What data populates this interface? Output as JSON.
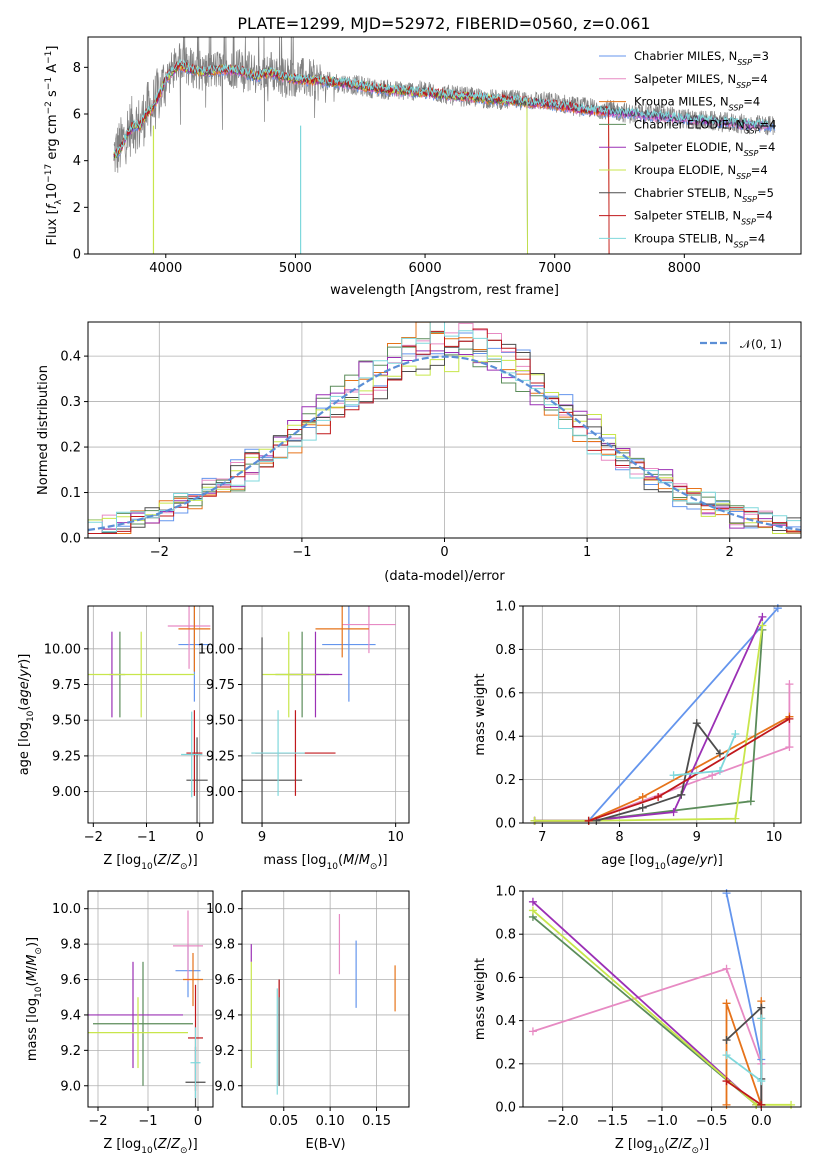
{
  "figure": {
    "title": "PLATE=1299, MJD=52972, FIBERID=0560, z=0.061"
  },
  "chart_data": [
    {
      "id": "spectrum",
      "type": "line",
      "xlabel": "wavelength [Angstrom, rest frame]",
      "ylabel": "Flux [f_λ 10^-17 erg cm^-2 s^-1 A^-1]",
      "xlim": [
        3400,
        8900
      ],
      "ylim": [
        0,
        9.3
      ],
      "xticks": [
        4000,
        5000,
        6000,
        7000,
        8000
      ],
      "yticks": [
        0,
        2,
        4,
        6,
        8
      ],
      "grid": false,
      "legend_placement": "right",
      "observed": {
        "color": "#808080",
        "x": [
          3600,
          3650,
          3700,
          3750,
          3800,
          3850,
          3900,
          3950,
          4000,
          4100,
          4200,
          4300,
          4400,
          4500,
          4600,
          4700,
          4800,
          4900,
          5000,
          5200,
          5400,
          5600,
          5800,
          6000,
          6200,
          6400,
          6600,
          6800,
          7000,
          7200,
          7400,
          7600,
          7800,
          8000,
          8200,
          8400,
          8600
        ],
        "y": [
          4.3,
          4.6,
          5.2,
          5.6,
          5.5,
          6.1,
          6.3,
          6.9,
          7.5,
          8.2,
          8.0,
          7.8,
          7.9,
          8.0,
          7.9,
          7.7,
          7.9,
          7.6,
          7.6,
          7.4,
          7.3,
          7.1,
          7.0,
          7.0,
          6.8,
          6.7,
          6.6,
          6.6,
          6.5,
          6.3,
          6.2,
          6.0,
          6.0,
          5.8,
          5.7,
          5.6,
          5.5
        ]
      },
      "series": [
        {
          "name": "Chabrier MILES, N_SSP=3",
          "color": "#6495ED"
        },
        {
          "name": "Salpeter MILES, N_SSP=4",
          "color": "#E78AC3"
        },
        {
          "name": "Kroupa MILES, N_SSP=4",
          "color": "#E6731A"
        },
        {
          "name": "Chabrier ELODIE, N_SSP=4",
          "color": "#5B8C5A"
        },
        {
          "name": "Salpeter ELODIE, N_SSP=4",
          "color": "#9B30B5"
        },
        {
          "name": "Kroupa ELODIE, N_SSP=4",
          "color": "#C8E64B"
        },
        {
          "name": "Chabrier STELIB, N_SSP=5",
          "color": "#4D4D4D"
        },
        {
          "name": "Salpeter STELIB, N_SSP=4",
          "color": "#C0181C"
        },
        {
          "name": "Kroupa STELIB, N_SSP=4",
          "color": "#7FD8DC"
        }
      ],
      "model_smooth": {
        "x": [
          3600,
          3650,
          3700,
          3750,
          3800,
          3850,
          3900,
          3950,
          4000,
          4100,
          4200,
          4300,
          4400,
          4500,
          4600,
          4700,
          4800,
          4900,
          5000,
          5200,
          5400,
          5600,
          5800,
          6000,
          6200,
          6400,
          6600,
          6800,
          7000,
          7200,
          7400,
          7600,
          7800,
          8000,
          8200,
          8400,
          8600
        ],
        "y": [
          4.2,
          4.5,
          5.1,
          5.5,
          5.5,
          6.0,
          6.3,
          6.8,
          7.5,
          8.1,
          7.9,
          7.8,
          7.9,
          7.9,
          7.8,
          7.6,
          7.8,
          7.6,
          7.5,
          7.4,
          7.3,
          7.1,
          7.0,
          6.9,
          6.8,
          6.7,
          6.6,
          6.5,
          6.4,
          6.2,
          6.1,
          6.0,
          5.9,
          5.8,
          5.7,
          5.6,
          5.5
        ]
      },
      "model_end_wavelength": [
        8700,
        8650,
        7420,
        6790,
        8650,
        6790,
        8650,
        7420,
        8650
      ]
    },
    {
      "id": "residuals",
      "type": "line",
      "xlabel": "(data-model)/error",
      "ylabel": "Normed distribution",
      "xlim": [
        -2.5,
        2.5
      ],
      "ylim": [
        0,
        0.475
      ],
      "xticks": [
        -2,
        -1,
        0,
        1,
        2
      ],
      "yticks": [
        0.0,
        0.1,
        0.2,
        0.3,
        0.4
      ],
      "grid": true,
      "legend_placement": "top-right",
      "reference": {
        "name": "𝒩(0, 1)",
        "color": "#5B8FD6"
      },
      "bin_width": 0.1
    },
    {
      "id": "z-age",
      "type": "scatter",
      "xlabel": "Z [log10(Z/Z⊙)]",
      "ylabel": "age  [log10(age/yr)]",
      "xlim": [
        -2.1,
        0.25
      ],
      "ylim": [
        8.78,
        10.3
      ],
      "xticks": [
        -2,
        -1,
        0
      ],
      "yticks": [
        9.0,
        9.25,
        9.5,
        9.75,
        10.0
      ],
      "grid": true,
      "points": [
        {
          "x": -0.1,
          "xerr": 0.3,
          "y": 10.03,
          "yerr": 0.4,
          "color": "#6495ED"
        },
        {
          "x": -0.2,
          "xerr": 0.4,
          "y": 10.16,
          "yerr": 0.3,
          "color": "#E78AC3"
        },
        {
          "x": -0.1,
          "xerr": 0.3,
          "y": 10.14,
          "yerr": 0.3,
          "color": "#E6731A"
        },
        {
          "x": -1.5,
          "xerr": 0.1,
          "y": 9.82,
          "yerr": 0.3,
          "color": "#5B8C5A"
        },
        {
          "x": -1.65,
          "xerr": 0.05,
          "y": 9.82,
          "yerr": 0.3,
          "color": "#9B30B5"
        },
        {
          "x": -1.1,
          "xerr": 1.0,
          "y": 9.82,
          "yerr": 0.3,
          "color": "#C8E64B"
        },
        {
          "x": -0.05,
          "xerr": 0.2,
          "y": 9.08,
          "yerr": 0.3,
          "color": "#4D4D4D"
        },
        {
          "x": -0.1,
          "xerr": 0.15,
          "y": 9.27,
          "yerr": 0.3,
          "color": "#C0181C"
        },
        {
          "x": -0.15,
          "xerr": 0.2,
          "y": 9.26,
          "yerr": 0.3,
          "color": "#7FD8DC"
        }
      ]
    },
    {
      "id": "mass-age",
      "type": "scatter",
      "xlabel": "mass [log10(M/M⊙)]",
      "ylabel": "",
      "xlim": [
        8.85,
        10.1
      ],
      "ylim": [
        8.78,
        10.3
      ],
      "xticks": [
        9,
        10
      ],
      "yticks": [
        9.0,
        9.25,
        9.5,
        9.75,
        10.0
      ],
      "grid": true,
      "points": [
        {
          "x": 9.65,
          "xerr": 0.2,
          "y": 10.03,
          "yerr": 0.4,
          "color": "#6495ED"
        },
        {
          "x": 9.8,
          "xerr": 0.2,
          "y": 10.17,
          "yerr": 0.2,
          "color": "#E78AC3"
        },
        {
          "x": 9.6,
          "xerr": 0.2,
          "y": 10.14,
          "yerr": 0.2,
          "color": "#E6731A"
        },
        {
          "x": 9.3,
          "xerr": 0.2,
          "y": 9.82,
          "yerr": 0.3,
          "color": "#5B8C5A"
        },
        {
          "x": 9.4,
          "xerr": 0.2,
          "y": 9.82,
          "yerr": 0.3,
          "color": "#9B30B5"
        },
        {
          "x": 9.2,
          "xerr": 0.2,
          "y": 9.82,
          "yerr": 0.3,
          "color": "#C8E64B"
        },
        {
          "x": 9.0,
          "xerr": 0.3,
          "y": 9.08,
          "yerr": 1.0,
          "color": "#4D4D4D"
        },
        {
          "x": 9.25,
          "xerr": 0.3,
          "y": 9.27,
          "yerr": 0.3,
          "color": "#C0181C"
        },
        {
          "x": 9.12,
          "xerr": 0.2,
          "y": 9.27,
          "yerr": 0.3,
          "color": "#7FD8DC"
        }
      ]
    },
    {
      "id": "age-weight",
      "type": "line",
      "xlabel": "age  [log10(age/yr)]",
      "ylabel": "mass weight",
      "xlim": [
        6.75,
        10.35
      ],
      "ylim": [
        0,
        1.0
      ],
      "xticks": [
        7,
        8,
        9,
        10
      ],
      "yticks": [
        0.0,
        0.2,
        0.4,
        0.6,
        0.8,
        1.0
      ],
      "grid": true,
      "series": [
        {
          "color": "#6495ED",
          "x": [
            6.9,
            7.6,
            10.05
          ],
          "y": [
            0.01,
            0.01,
            0.99
          ]
        },
        {
          "color": "#E78AC3",
          "x": [
            6.9,
            7.6,
            9.2,
            10.2,
            10.2
          ],
          "y": [
            0.01,
            0.01,
            0.22,
            0.35,
            0.64
          ]
        },
        {
          "color": "#E6731A",
          "x": [
            6.9,
            7.6,
            8.3,
            10.2
          ],
          "y": [
            0.01,
            0.01,
            0.12,
            0.49
          ]
        },
        {
          "color": "#5B8C5A",
          "x": [
            6.9,
            7.6,
            9.7,
            9.85
          ],
          "y": [
            0.01,
            0.01,
            0.1,
            0.89
          ]
        },
        {
          "color": "#9B30B5",
          "x": [
            6.9,
            7.6,
            8.7,
            9.85
          ],
          "y": [
            0.01,
            0.01,
            0.05,
            0.95
          ]
        },
        {
          "color": "#C8E64B",
          "x": [
            6.9,
            7.6,
            9.5,
            9.85
          ],
          "y": [
            0.01,
            0.01,
            0.02,
            0.91
          ]
        },
        {
          "color": "#4D4D4D",
          "x": [
            7.7,
            8.3,
            8.8,
            9.0,
            9.3
          ],
          "y": [
            0.01,
            0.07,
            0.13,
            0.46,
            0.32
          ]
        },
        {
          "color": "#C0181C",
          "x": [
            7.6,
            8.5,
            10.2
          ],
          "y": [
            0.01,
            0.12,
            0.48
          ]
        },
        {
          "color": "#7FD8DC",
          "x": [
            8.7,
            9.3,
            9.5
          ],
          "y": [
            0.22,
            0.24,
            0.41
          ]
        }
      ]
    },
    {
      "id": "z-mass",
      "type": "scatter",
      "xlabel": "Z [log10(Z/Z⊙)]",
      "ylabel": "mass [log10(M/M⊙)]",
      "xlim": [
        -2.2,
        0.3
      ],
      "ylim": [
        8.88,
        10.1
      ],
      "xticks": [
        -2,
        -1,
        0
      ],
      "yticks": [
        9.0,
        9.2,
        9.4,
        9.6,
        9.8,
        10.0
      ],
      "grid": true,
      "points": [
        {
          "x": -0.2,
          "xerr": 0.25,
          "y": 9.65,
          "yerr": 0.15,
          "color": "#6495ED"
        },
        {
          "x": -0.2,
          "xerr": 0.3,
          "y": 9.79,
          "yerr": 0.2,
          "color": "#E78AC3"
        },
        {
          "x": -0.1,
          "xerr": 0.2,
          "y": 9.6,
          "yerr": 0.15,
          "color": "#E6731A"
        },
        {
          "x": -1.1,
          "xerr": 1.0,
          "y": 9.35,
          "yerr": 0.35,
          "color": "#5B8C5A"
        },
        {
          "x": -1.3,
          "xerr": 1.0,
          "y": 9.4,
          "yerr": 0.3,
          "color": "#9B30B5"
        },
        {
          "x": -1.2,
          "xerr": 1.0,
          "y": 9.3,
          "yerr": 0.2,
          "color": "#C8E64B"
        },
        {
          "x": -0.05,
          "xerr": 0.2,
          "y": 9.02,
          "yerr": 0.2,
          "color": "#4D4D4D"
        },
        {
          "x": -0.05,
          "xerr": 0.15,
          "y": 9.27,
          "yerr": 0.3,
          "color": "#C0181C"
        },
        {
          "x": -0.05,
          "xerr": 0.1,
          "y": 9.13,
          "yerr": 0.2,
          "color": "#7FD8DC"
        }
      ]
    },
    {
      "id": "ebv-mass",
      "type": "scatter",
      "xlabel": "E(B-V)",
      "ylabel": "",
      "xlim": [
        0.005,
        0.185
      ],
      "ylim": [
        8.88,
        10.1
      ],
      "xticks": [
        0.05,
        0.1,
        0.15
      ],
      "yticks": [
        9.0,
        9.2,
        9.4,
        9.6,
        9.8,
        10.0
      ],
      "grid": true,
      "points": [
        {
          "x": 0.128,
          "y": 9.63,
          "yerr": 0.19,
          "color": "#6495ED"
        },
        {
          "x": 0.11,
          "y": 9.8,
          "yerr": 0.17,
          "color": "#E78AC3"
        },
        {
          "x": 0.17,
          "y": 9.55,
          "yerr": 0.13,
          "color": "#E6731A"
        },
        {
          "x": 0.015,
          "y": 9.75,
          "yerr": 0.05,
          "color": "#9B30B5"
        },
        {
          "x": 0.015,
          "y": 9.4,
          "yerr": 0.3,
          "color": "#C8E64B"
        },
        {
          "x": 0.045,
          "y": 9.3,
          "yerr": 0.3,
          "color": "#4D4D4D"
        },
        {
          "x": 0.045,
          "y": 9.55,
          "yerr": 0.05,
          "color": "#C0181C"
        },
        {
          "x": 0.043,
          "y": 9.25,
          "yerr": 0.3,
          "color": "#7FD8DC"
        }
      ]
    },
    {
      "id": "z-weight",
      "type": "line",
      "xlabel": "Z [log10(Z/Z⊙)]",
      "ylabel": "mass weight",
      "xlim": [
        -2.4,
        0.4
      ],
      "ylim": [
        0,
        1.0
      ],
      "xticks": [
        -2.0,
        -1.5,
        -1.0,
        -0.5,
        0.0
      ],
      "yticks": [
        0.0,
        0.2,
        0.4,
        0.6,
        0.8,
        1.0
      ],
      "grid": true,
      "series": [
        {
          "color": "#E78AC3",
          "x": [
            -2.3,
            -0.35,
            0.0,
            0.0
          ],
          "y": [
            0.35,
            0.64,
            0.2,
            0.01
          ]
        },
        {
          "color": "#9B30B5",
          "x": [
            -2.3,
            -0.05,
            0.0
          ],
          "y": [
            0.95,
            0.01,
            0.01
          ]
        },
        {
          "color": "#5B8C5A",
          "x": [
            -2.3,
            -0.05,
            0.0
          ],
          "y": [
            0.88,
            0.01,
            0.01
          ]
        },
        {
          "color": "#C8E64B",
          "x": [
            -2.3,
            -0.05,
            0.3
          ],
          "y": [
            0.91,
            0.01,
            0.01
          ]
        },
        {
          "color": "#6495ED",
          "x": [
            -0.35,
            0.0,
            0.0
          ],
          "y": [
            0.99,
            0.22,
            0.01
          ]
        },
        {
          "color": "#E6731A",
          "x": [
            -0.35,
            -0.35,
            0.0,
            0.0
          ],
          "y": [
            0.01,
            0.48,
            0.01,
            0.49
          ]
        },
        {
          "color": "#4D4D4D",
          "x": [
            -0.35,
            0.0,
            0.0,
            0.0
          ],
          "y": [
            0.31,
            0.46,
            0.01,
            0.13
          ]
        },
        {
          "color": "#7FD8DC",
          "x": [
            -0.35,
            0.0,
            0.0
          ],
          "y": [
            0.24,
            0.12,
            0.41
          ]
        },
        {
          "color": "#C0181C",
          "x": [
            -0.35,
            0.0
          ],
          "y": [
            0.12,
            0.01
          ]
        }
      ]
    }
  ]
}
